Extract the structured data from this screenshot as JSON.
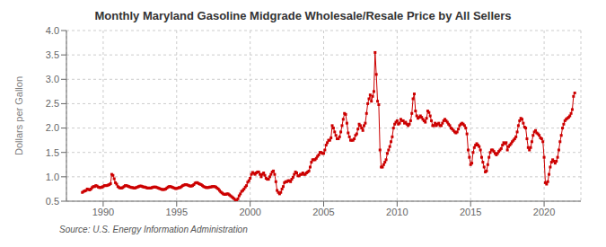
{
  "chart_data": {
    "type": "line",
    "title": "Monthly Maryland Gasoline Midgrade Wholesale/Resale Price by All Sellers",
    "ylabel": "Dollars per Gallon",
    "annotations": [
      "Source: U.S. Energy Information Administration"
    ],
    "xlim": [
      1987.5,
      2022.5
    ],
    "ylim": [
      0.5,
      4.0
    ],
    "xticks": [
      1990,
      1995,
      2000,
      2005,
      2010,
      2015,
      2020
    ],
    "yticks": [
      0.5,
      {
        "value": 1.0,
        "label": "1.0"
      },
      1.5,
      {
        "value": 2.0,
        "label": "2.0"
      },
      2.5,
      {
        "value": 3.0,
        "label": "3.0"
      },
      3.5,
      {
        "value": 4.0,
        "label": "4.0"
      }
    ],
    "grid": true,
    "color": "#cc0000",
    "marker": "square",
    "line_style": "solid",
    "x": [
      1988.583,
      1988.667,
      1988.75,
      1988.833,
      1988.917,
      1989.0,
      1989.083,
      1989.167,
      1989.25,
      1989.333,
      1989.417,
      1989.5,
      1989.583,
      1989.667,
      1989.75,
      1989.833,
      1989.917,
      1990.0,
      1990.083,
      1990.167,
      1990.25,
      1990.333,
      1990.417,
      1990.5,
      1990.583,
      1990.667,
      1990.75,
      1990.833,
      1990.917,
      1991.0,
      1991.083,
      1991.167,
      1991.25,
      1991.333,
      1991.417,
      1991.5,
      1991.583,
      1991.667,
      1991.75,
      1991.833,
      1991.917,
      1992.0,
      1992.083,
      1992.167,
      1992.25,
      1992.333,
      1992.417,
      1992.5,
      1992.583,
      1992.667,
      1992.75,
      1992.833,
      1992.917,
      1993.0,
      1993.083,
      1993.167,
      1993.25,
      1993.333,
      1993.417,
      1993.5,
      1993.583,
      1993.667,
      1993.75,
      1993.833,
      1993.917,
      1994.0,
      1994.083,
      1994.167,
      1994.25,
      1994.333,
      1994.417,
      1994.5,
      1994.583,
      1994.667,
      1994.75,
      1994.833,
      1994.917,
      1995.0,
      1995.083,
      1995.167,
      1995.25,
      1995.333,
      1995.417,
      1995.5,
      1995.583,
      1995.667,
      1995.75,
      1995.833,
      1995.917,
      1996.0,
      1996.083,
      1996.167,
      1996.25,
      1996.333,
      1996.417,
      1996.5,
      1996.583,
      1996.667,
      1996.75,
      1996.833,
      1996.917,
      1997.0,
      1997.083,
      1997.167,
      1997.25,
      1997.333,
      1997.417,
      1997.5,
      1997.583,
      1997.667,
      1997.75,
      1997.833,
      1997.917,
      1998.0,
      1998.083,
      1998.167,
      1998.25,
      1998.333,
      1998.417,
      1998.5,
      1998.583,
      1998.667,
      1998.75,
      1998.833,
      1998.917,
      1999.0,
      1999.083,
      1999.167,
      1999.25,
      1999.333,
      1999.417,
      1999.5,
      1999.583,
      1999.667,
      1999.75,
      1999.833,
      1999.917,
      2000.0,
      2000.083,
      2000.167,
      2000.25,
      2000.333,
      2000.417,
      2000.5,
      2000.583,
      2000.667,
      2000.75,
      2000.833,
      2000.917,
      2001.0,
      2001.083,
      2001.167,
      2001.25,
      2001.333,
      2001.417,
      2001.5,
      2001.583,
      2001.667,
      2001.75,
      2001.833,
      2001.917,
      2002.0,
      2002.083,
      2002.167,
      2002.25,
      2002.333,
      2002.417,
      2002.5,
      2002.583,
      2002.667,
      2002.75,
      2002.833,
      2002.917,
      2003.0,
      2003.083,
      2003.167,
      2003.25,
      2003.333,
      2003.417,
      2003.5,
      2003.583,
      2003.667,
      2003.75,
      2003.833,
      2003.917,
      2004.0,
      2004.083,
      2004.167,
      2004.25,
      2004.333,
      2004.417,
      2004.5,
      2004.583,
      2004.667,
      2004.75,
      2004.833,
      2004.917,
      2005.0,
      2005.083,
      2005.167,
      2005.25,
      2005.333,
      2005.417,
      2005.5,
      2005.583,
      2005.667,
      2005.75,
      2005.833,
      2005.917,
      2006.0,
      2006.083,
      2006.167,
      2006.25,
      2006.333,
      2006.417,
      2006.5,
      2006.583,
      2006.667,
      2006.75,
      2006.833,
      2006.917,
      2007.0,
      2007.083,
      2007.167,
      2007.25,
      2007.333,
      2007.417,
      2007.5,
      2007.583,
      2007.667,
      2007.75,
      2007.833,
      2007.917,
      2008.0,
      2008.083,
      2008.167,
      2008.25,
      2008.333,
      2008.417,
      2008.5,
      2008.583,
      2008.667,
      2008.75,
      2008.833,
      2008.917,
      2009.0,
      2009.083,
      2009.167,
      2009.25,
      2009.333,
      2009.417,
      2009.5,
      2009.583,
      2009.667,
      2009.75,
      2009.833,
      2009.917,
      2010.0,
      2010.083,
      2010.167,
      2010.25,
      2010.333,
      2010.417,
      2010.5,
      2010.583,
      2010.667,
      2010.75,
      2010.833,
      2010.917,
      2011.0,
      2011.083,
      2011.167,
      2011.25,
      2011.333,
      2011.417,
      2011.5,
      2011.583,
      2011.667,
      2011.75,
      2011.833,
      2011.917,
      2012.0,
      2012.083,
      2012.167,
      2012.25,
      2012.333,
      2012.417,
      2012.5,
      2012.583,
      2012.667,
      2012.75,
      2012.833,
      2012.917,
      2013.0,
      2013.083,
      2013.167,
      2013.25,
      2013.333,
      2013.417,
      2013.5,
      2013.583,
      2013.667,
      2013.75,
      2013.833,
      2013.917,
      2014.0,
      2014.083,
      2014.167,
      2014.25,
      2014.333,
      2014.417,
      2014.5,
      2014.583,
      2014.667,
      2014.75,
      2014.833,
      2014.917,
      2015.0,
      2015.083,
      2015.167,
      2015.25,
      2015.333,
      2015.417,
      2015.5,
      2015.583,
      2015.667,
      2015.75,
      2015.833,
      2015.917,
      2016.0,
      2016.083,
      2016.167,
      2016.25,
      2016.333,
      2016.417,
      2016.5,
      2016.583,
      2016.667,
      2016.75,
      2016.833,
      2016.917,
      2017.0,
      2017.083,
      2017.167,
      2017.25,
      2017.333,
      2017.417,
      2017.5,
      2017.583,
      2017.667,
      2017.75,
      2017.833,
      2017.917,
      2018.0,
      2018.083,
      2018.167,
      2018.25,
      2018.333,
      2018.417,
      2018.5,
      2018.583,
      2018.667,
      2018.75,
      2018.833,
      2018.917,
      2019.0,
      2019.083,
      2019.167,
      2019.25,
      2019.333,
      2019.417,
      2019.5,
      2019.583,
      2019.667,
      2019.75,
      2019.833,
      2019.917,
      2020.0,
      2020.083,
      2020.167,
      2020.25,
      2020.333,
      2020.417,
      2020.5,
      2020.583,
      2020.667,
      2020.75,
      2020.833,
      2020.917,
      2021.0,
      2021.083,
      2021.167,
      2021.25,
      2021.333,
      2021.417,
      2021.5,
      2021.583,
      2021.667,
      2021.75,
      2021.833,
      2021.917,
      2022.0,
      2022.083
    ],
    "values": [
      0.68,
      0.7,
      0.71,
      0.72,
      0.75,
      0.74,
      0.73,
      0.75,
      0.78,
      0.8,
      0.8,
      0.82,
      0.81,
      0.79,
      0.78,
      0.78,
      0.79,
      0.8,
      0.82,
      0.82,
      0.82,
      0.83,
      0.84,
      0.86,
      1.05,
      1.03,
      0.96,
      0.88,
      0.85,
      0.8,
      0.78,
      0.77,
      0.77,
      0.78,
      0.8,
      0.82,
      0.82,
      0.81,
      0.8,
      0.79,
      0.78,
      0.78,
      0.77,
      0.77,
      0.78,
      0.79,
      0.8,
      0.81,
      0.81,
      0.8,
      0.79,
      0.79,
      0.78,
      0.77,
      0.77,
      0.77,
      0.77,
      0.78,
      0.79,
      0.79,
      0.79,
      0.78,
      0.77,
      0.76,
      0.75,
      0.74,
      0.74,
      0.74,
      0.75,
      0.77,
      0.79,
      0.8,
      0.8,
      0.79,
      0.78,
      0.77,
      0.76,
      0.76,
      0.77,
      0.78,
      0.78,
      0.8,
      0.82,
      0.83,
      0.84,
      0.84,
      0.83,
      0.82,
      0.81,
      0.81,
      0.82,
      0.84,
      0.87,
      0.88,
      0.88,
      0.86,
      0.85,
      0.84,
      0.82,
      0.8,
      0.79,
      0.78,
      0.78,
      0.78,
      0.79,
      0.79,
      0.8,
      0.8,
      0.8,
      0.79,
      0.77,
      0.75,
      0.72,
      0.69,
      0.67,
      0.65,
      0.64,
      0.64,
      0.65,
      0.65,
      0.63,
      0.61,
      0.59,
      0.57,
      0.55,
      0.52,
      0.52,
      0.55,
      0.61,
      0.65,
      0.7,
      0.72,
      0.75,
      0.79,
      0.82,
      0.89,
      0.92,
      0.97,
      1.05,
      1.09,
      1.07,
      1.05,
      1.08,
      1.1,
      1.1,
      1.05,
      1.0,
      1.05,
      1.08,
      1.03,
      0.97,
      0.95,
      0.95,
      1.0,
      1.05,
      1.1,
      1.12,
      1.05,
      0.9,
      0.72,
      0.68,
      0.65,
      0.68,
      0.75,
      0.8,
      0.88,
      0.9,
      0.9,
      0.92,
      0.92,
      0.9,
      0.95,
      0.99,
      1.05,
      1.1,
      1.08,
      1.02,
      1.02,
      1.05,
      1.05,
      1.08,
      1.05,
      1.05,
      1.08,
      1.1,
      1.12,
      1.2,
      1.3,
      1.35,
      1.35,
      1.35,
      1.38,
      1.42,
      1.45,
      1.5,
      1.5,
      1.48,
      1.48,
      1.55,
      1.65,
      1.7,
      1.75,
      1.75,
      1.8,
      2.05,
      2.0,
      1.92,
      1.85,
      1.78,
      1.78,
      1.82,
      1.92,
      2.05,
      2.18,
      2.3,
      2.28,
      2.1,
      1.9,
      1.82,
      1.75,
      1.75,
      1.75,
      1.78,
      1.85,
      1.88,
      1.98,
      2.08,
      2.05,
      2.0,
      1.95,
      2.05,
      2.1,
      2.3,
      2.5,
      2.6,
      2.68,
      2.55,
      2.65,
      2.75,
      3.55,
      3.1,
      2.55,
      2.48,
      1.55,
      1.2,
      1.2,
      1.25,
      1.3,
      1.35,
      1.48,
      1.55,
      1.62,
      1.72,
      1.82,
      2.0,
      2.08,
      2.12,
      2.15,
      2.08,
      2.1,
      2.18,
      2.15,
      2.15,
      2.1,
      2.12,
      2.08,
      2.05,
      2.08,
      2.15,
      2.3,
      2.6,
      2.7,
      2.35,
      2.25,
      2.2,
      2.22,
      2.25,
      2.22,
      2.18,
      2.15,
      2.12,
      2.2,
      2.35,
      2.32,
      2.25,
      2.15,
      2.05,
      2.05,
      2.1,
      2.05,
      2.08,
      2.1,
      2.05,
      2.05,
      2.1,
      2.15,
      2.18,
      2.15,
      2.12,
      2.08,
      2.05,
      2.0,
      1.98,
      1.95,
      1.92,
      1.9,
      1.92,
      1.98,
      2.05,
      2.08,
      2.1,
      2.08,
      2.05,
      2.0,
      1.88,
      1.55,
      1.4,
      1.25,
      1.28,
      1.5,
      1.6,
      1.65,
      1.68,
      1.65,
      1.62,
      1.55,
      1.4,
      1.3,
      1.2,
      1.1,
      1.12,
      1.25,
      1.4,
      1.5,
      1.55,
      1.55,
      1.52,
      1.48,
      1.45,
      1.48,
      1.52,
      1.55,
      1.58,
      1.65,
      1.7,
      1.68,
      1.7,
      1.55,
      1.62,
      1.65,
      1.68,
      1.72,
      1.75,
      1.78,
      1.82,
      1.92,
      2.05,
      2.15,
      2.2,
      2.18,
      2.1,
      2.02,
      2.0,
      1.78,
      1.6,
      1.55,
      1.6,
      1.72,
      1.85,
      1.92,
      1.95,
      1.9,
      1.88,
      1.85,
      1.8,
      1.78,
      1.72,
      1.4,
      0.88,
      0.85,
      0.9,
      1.05,
      1.2,
      1.3,
      1.35,
      1.32,
      1.28,
      1.32,
      1.4,
      1.55,
      1.72,
      1.85,
      2.0,
      2.08,
      2.15,
      2.18,
      2.2,
      2.22,
      2.25,
      2.3,
      2.38,
      2.65,
      2.72
    ]
  }
}
